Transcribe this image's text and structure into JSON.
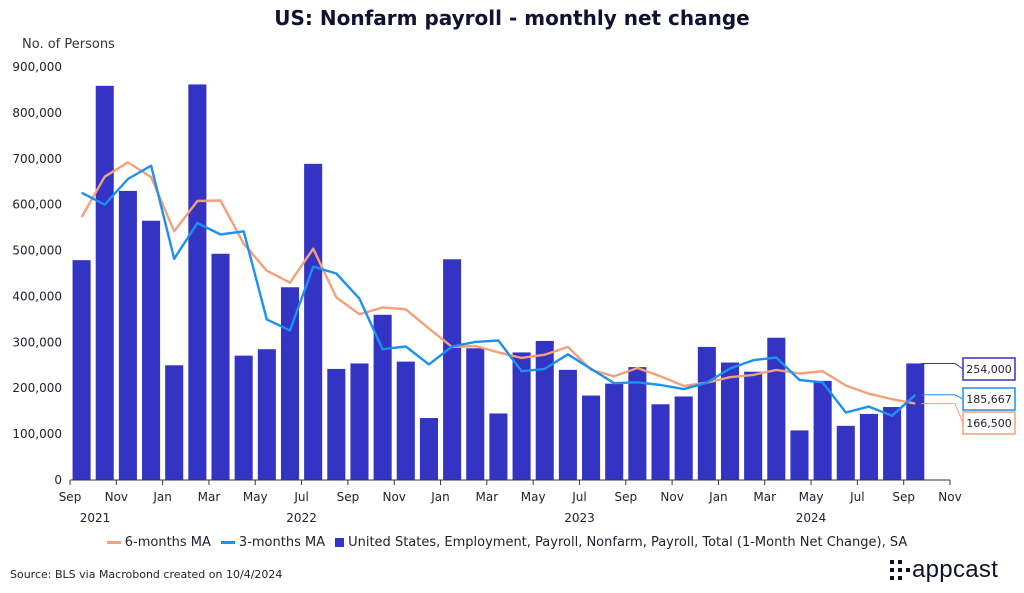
{
  "chart_data": {
    "type": "bar",
    "title": "US: Nonfarm payroll - monthly net change",
    "ylabel": "No. of Persons",
    "ylim": [
      0,
      900000
    ],
    "yticks": [
      "0",
      "100,000",
      "200,000",
      "300,000",
      "400,000",
      "500,000",
      "600,000",
      "700,000",
      "800,000",
      "900,000"
    ],
    "x_tick_labels": [
      "Sep",
      "Nov",
      "Jan",
      "Mar",
      "May",
      "Jul",
      "Sep",
      "Nov",
      "Jan",
      "Mar",
      "May",
      "Jul",
      "Sep",
      "Nov",
      "Jan",
      "Mar",
      "May",
      "Jul",
      "Sep",
      "Nov"
    ],
    "year_labels": [
      "2021",
      "2022",
      "2023",
      "2024"
    ],
    "categories": [
      "2021-09",
      "2021-10",
      "2021-11",
      "2021-12",
      "2022-01",
      "2022-02",
      "2022-03",
      "2022-04",
      "2022-05",
      "2022-06",
      "2022-07",
      "2022-08",
      "2022-09",
      "2022-10",
      "2022-11",
      "2022-12",
      "2023-01",
      "2023-02",
      "2023-03",
      "2023-04",
      "2023-05",
      "2023-06",
      "2023-07",
      "2023-08",
      "2023-09",
      "2023-10",
      "2023-11",
      "2023-12",
      "2024-01",
      "2024-02",
      "2024-03",
      "2024-04",
      "2024-05",
      "2024-06",
      "2024-07",
      "2024-08",
      "2024-09"
    ],
    "series": [
      {
        "name": "United States, Employment, Payroll, Nonfarm, Payroll, Total (1-Month Net Change), SA",
        "kind": "bar",
        "color": "#3333c4",
        "values": [
          479000,
          859000,
          630000,
          565000,
          250000,
          862000,
          493000,
          271000,
          285000,
          420000,
          689000,
          242000,
          254000,
          360000,
          258000,
          135000,
          481000,
          287000,
          145000,
          278000,
          303000,
          240000,
          184000,
          210000,
          246000,
          165000,
          182000,
          290000,
          256000,
          236000,
          310000,
          108000,
          216000,
          118000,
          144000,
          159000,
          254000
        ]
      },
      {
        "name": "3-months MA",
        "kind": "line",
        "color": "#1e90ee",
        "values": [
          626000,
          600000,
          656000,
          685000,
          482000,
          560000,
          535000,
          542000,
          350000,
          326000,
          465000,
          450000,
          395000,
          285000,
          291000,
          252000,
          291000,
          301000,
          304000,
          237000,
          242000,
          274000,
          242000,
          211000,
          213000,
          207000,
          198000,
          212000,
          243000,
          261000,
          267000,
          218000,
          213000,
          147000,
          160000,
          140000,
          185667
        ]
      },
      {
        "name": "6-months MA",
        "kind": "line",
        "color": "#f4a07a",
        "values": [
          573000,
          661000,
          692000,
          660000,
          542000,
          608000,
          609000,
          515000,
          456000,
          430000,
          504000,
          398000,
          361000,
          376000,
          372000,
          330000,
          290000,
          292000,
          278000,
          266000,
          273000,
          290000,
          240000,
          226000,
          244000,
          226000,
          205000,
          212000,
          224000,
          229000,
          240000,
          232000,
          237000,
          206000,
          188000,
          176000,
          166500
        ]
      }
    ],
    "end_labels": [
      {
        "text": "254,000",
        "color": "#3333c4"
      },
      {
        "text": "185,667",
        "color": "#1e90ee"
      },
      {
        "text": "166,500",
        "color": "#f4a07a"
      }
    ]
  },
  "legend": {
    "items": [
      {
        "label": "6-months MA",
        "color": "#f4a07a"
      },
      {
        "label": "3-months MA",
        "color": "#1e90ee"
      },
      {
        "label": "United States, Employment, Payroll, Nonfarm, Payroll, Total (1-Month Net Change), SA",
        "color": "#3333c4"
      }
    ]
  },
  "footer": {
    "source": "Source: BLS via Macrobond created on 10/4/2024",
    "brand": "appcast"
  }
}
